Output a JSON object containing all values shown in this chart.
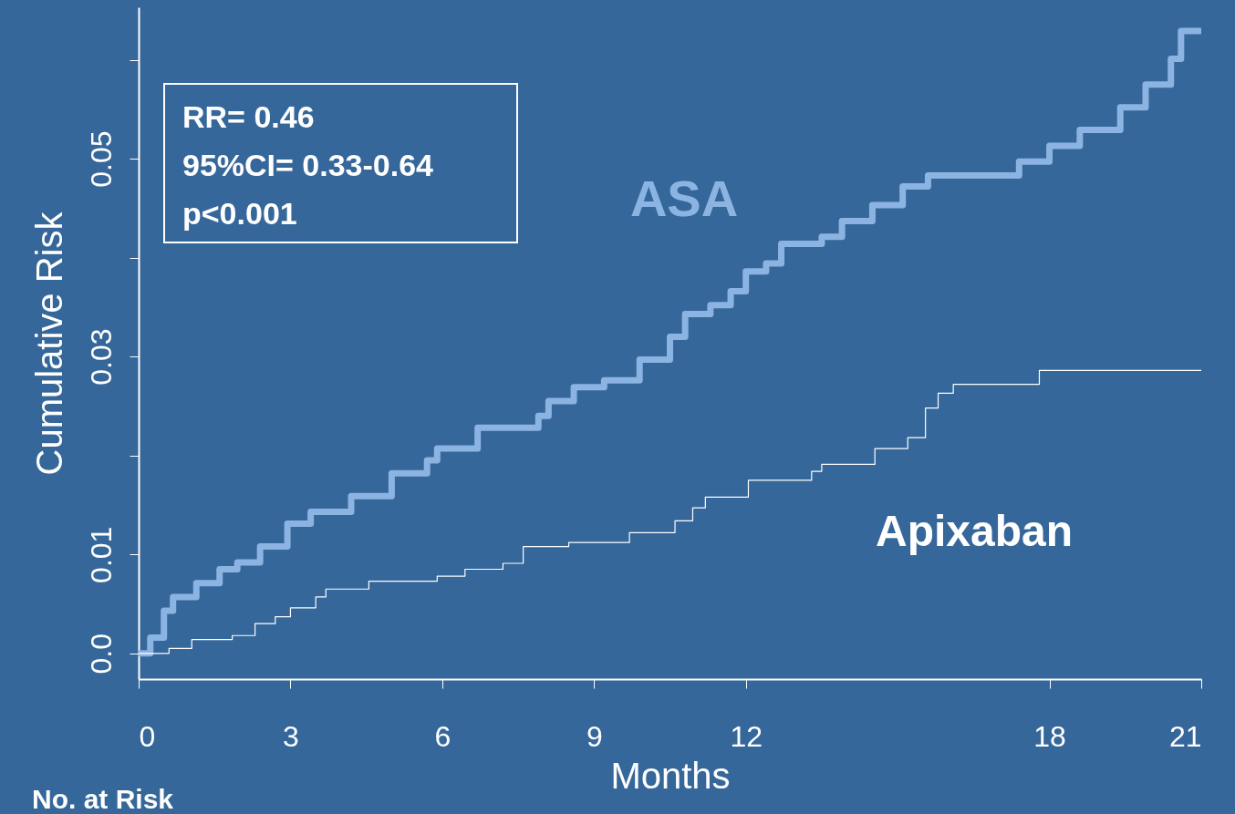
{
  "chart_data": {
    "type": "step",
    "xlabel": "Months",
    "ylabel": "Cumulative Risk",
    "xlim": [
      0,
      21
    ],
    "xticks": [
      0,
      3,
      6,
      9,
      12,
      18,
      21
    ],
    "ylim": [
      -0.0026,
      0.0653
    ],
    "yticks": [
      {
        "value": 0,
        "label": "0.0"
      },
      0.01,
      {
        "value": 0.02,
        "label": null
      },
      0.03,
      {
        "value": 0.04,
        "label": null
      },
      0.05,
      {
        "value": 0.06,
        "label": null
      }
    ],
    "grid": false,
    "legend": false,
    "line_style": "solid",
    "annotations": [
      "RR= 0.46",
      "95%CI= 0.33-0.64",
      "p<0.001",
      "No. at Risk"
    ],
    "series": [
      {
        "name": "ASA",
        "color": "#8cb4e3",
        "x": [
          0,
          0.23,
          0.5,
          0.68,
          1.14,
          1.6,
          1.95,
          2.4,
          2.94,
          3.4,
          4.2,
          5.0,
          5.7,
          5.9,
          6.7,
          7.9,
          8.1,
          8.6,
          9.2,
          9.9,
          10.5,
          10.8,
          11.3,
          11.7,
          12.0,
          12.4,
          12.7,
          13.5,
          13.9,
          14.5,
          15.1,
          15.6,
          17.4,
          18.0,
          18.6,
          19.4,
          19.9,
          20.4,
          20.6,
          21
        ],
        "values": [
          0,
          0.0016,
          0.0043,
          0.0057,
          0.0071,
          0.0085,
          0.0092,
          0.0108,
          0.0131,
          0.0143,
          0.0159,
          0.0182,
          0.0195,
          0.0207,
          0.0228,
          0.024,
          0.0255,
          0.0269,
          0.0276,
          0.0297,
          0.032,
          0.0343,
          0.0352,
          0.0366,
          0.0386,
          0.0394,
          0.0414,
          0.0421,
          0.0437,
          0.0453,
          0.0472,
          0.0483,
          0.0497,
          0.0513,
          0.0529,
          0.0552,
          0.0575,
          0.0601,
          0.0629,
          0.0629
        ]
      },
      {
        "name": "Apixaban",
        "color": "#ffffff",
        "x": [
          0,
          0.6,
          1.05,
          1.85,
          2.3,
          2.7,
          3.0,
          3.5,
          3.7,
          4.55,
          5.9,
          6.45,
          7.2,
          7.6,
          8.5,
          9.7,
          10.6,
          10.95,
          11.2,
          12.05,
          13.3,
          13.5,
          14.55,
          15.2,
          15.55,
          15.8,
          16.1,
          17.8,
          21
        ],
        "values": [
          0,
          0.0005,
          0.0014,
          0.0018,
          0.003,
          0.0037,
          0.0046,
          0.0057,
          0.0065,
          0.0073,
          0.0078,
          0.0085,
          0.0091,
          0.0108,
          0.0112,
          0.0122,
          0.0134,
          0.0147,
          0.0158,
          0.0175,
          0.0184,
          0.0191,
          0.0207,
          0.0218,
          0.0248,
          0.0263,
          0.0272,
          0.0286,
          0.0286
        ]
      }
    ]
  }
}
